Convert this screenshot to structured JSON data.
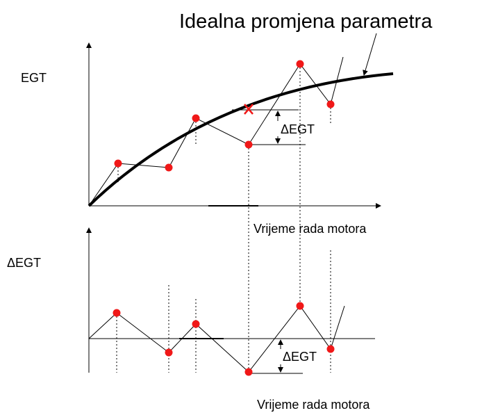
{
  "title": "Idealna promjena parametra",
  "top_plot": {
    "y_label": "EGT",
    "x_label": "Vrijeme rada motora",
    "delta_label": "ΔEGT"
  },
  "bottom_plot": {
    "y_label": "ΔEGT",
    "x_label": "Vrijeme rada motora",
    "delta_label": "ΔEGT"
  }
}
